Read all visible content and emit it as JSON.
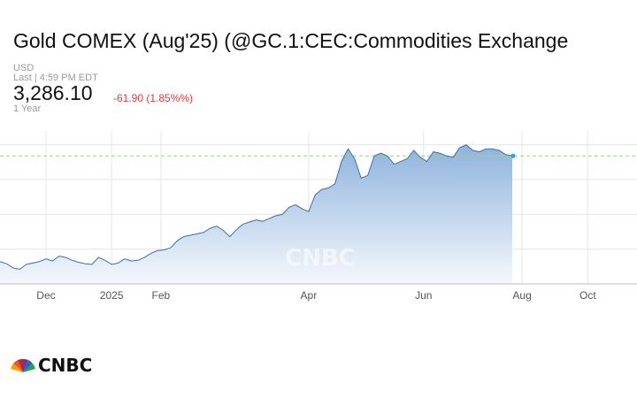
{
  "header": {
    "title": "Gold COMEX (Aug'25) (@GC.1:CEC:Commodities Exchange",
    "currency": "USD",
    "last_update": "Last | 4:59 PM EDT",
    "price": "3,286.10",
    "change": "-61.90 (1.85%%)",
    "range": "1 Year"
  },
  "colors": {
    "change_negative": "#e03a3a",
    "line": "#3c6fa8",
    "area_top": "#8fb3dc",
    "area_bottom": "#f5f8fc",
    "current_marker": "#2aa4f0",
    "reference_line": "#9ccf8a",
    "grid": "#e6e6e6"
  },
  "branding": {
    "logo": "CNBC",
    "watermark": "CNBC"
  },
  "chart_data": {
    "type": "area",
    "title": "",
    "xlabel": "",
    "ylabel": "",
    "x_ticks": [
      "Dec",
      "2025",
      "Feb",
      "Apr",
      "Jun",
      "Aug",
      "Oct"
    ],
    "x_tick_months": [
      1.0,
      3.0,
      4.5,
      9.0,
      12.5,
      15.5,
      17.5
    ],
    "x_range_months": [
      -0.4,
      19.0
    ],
    "ylim": [
      2500,
      3600
    ],
    "grid": true,
    "legend": "none",
    "current_value": 3286.1,
    "series": [
      {
        "x_months": [
          -0.4,
          -0.2,
          0.0,
          0.2,
          0.4,
          0.6,
          0.8,
          1.0,
          1.2,
          1.4,
          1.6,
          1.8,
          2.0,
          2.2,
          2.4,
          2.6,
          2.8,
          3.0,
          3.2,
          3.4,
          3.6,
          3.8,
          4.0,
          4.2,
          4.4,
          4.6,
          4.8,
          5.0,
          5.2,
          5.4,
          5.6,
          5.8,
          6.0,
          6.2,
          6.4,
          6.6,
          6.8,
          7.0,
          7.2,
          7.4,
          7.6,
          7.8,
          8.0,
          8.2,
          8.4,
          8.6,
          8.8,
          9.0,
          9.2,
          9.4,
          9.6,
          9.8,
          10.0,
          10.2,
          10.4,
          10.6,
          10.8,
          11.0,
          11.2,
          11.4,
          11.6,
          11.8,
          12.0,
          12.2,
          12.4,
          12.6,
          12.8,
          13.0,
          13.2,
          13.4,
          13.6,
          13.8,
          14.0,
          14.2,
          14.4,
          14.6,
          14.8,
          15.0,
          15.2
        ],
        "values": [
          2660,
          2645,
          2615,
          2605,
          2640,
          2650,
          2660,
          2680,
          2665,
          2700,
          2690,
          2670,
          2655,
          2645,
          2640,
          2690,
          2670,
          2640,
          2650,
          2680,
          2665,
          2670,
          2690,
          2720,
          2740,
          2745,
          2760,
          2810,
          2840,
          2850,
          2860,
          2870,
          2900,
          2915,
          2885,
          2840,
          2890,
          2930,
          2945,
          2960,
          2950,
          2970,
          2990,
          3000,
          3050,
          3070,
          3040,
          3020,
          3140,
          3180,
          3190,
          3220,
          3380,
          3470,
          3400,
          3260,
          3280,
          3420,
          3440,
          3420,
          3360,
          3380,
          3400,
          3460,
          3410,
          3380,
          3450,
          3440,
          3420,
          3410,
          3480,
          3500,
          3460,
          3450,
          3470,
          3470,
          3460,
          3430,
          3420
        ]
      }
    ]
  }
}
